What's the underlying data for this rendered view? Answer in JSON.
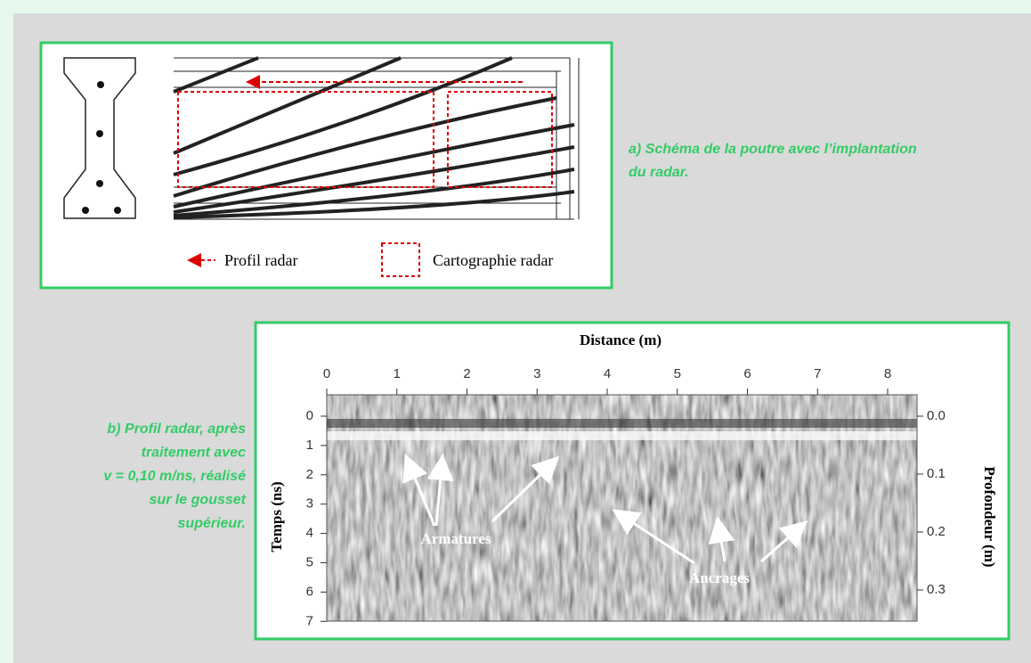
{
  "panel_a": {
    "caption": [
      "a)  Schéma de la poutre avec l’implantation",
      "du radar."
    ],
    "legend": [
      "Profil radar",
      "Cartographie radar"
    ]
  },
  "panel_b": {
    "caption": [
      "b) Profil radar, après",
      "traitement avec",
      "v = 0,10 m/ns, réalisé",
      "sur le gousset",
      "supérieur."
    ],
    "x_axis": {
      "label": "Distance (m)",
      "ticks": [
        "0",
        "1",
        "2",
        "3",
        "4",
        "5",
        "6",
        "7",
        "8"
      ]
    },
    "left_axis": {
      "label": "Temps (ns)",
      "ticks": [
        "0",
        "1",
        "2",
        "3",
        "4",
        "5",
        "6",
        "7"
      ]
    },
    "right_axis": {
      "label": "Profondeur (m)",
      "ticks": [
        "0.0",
        "0.1",
        "0.2",
        "0.3"
      ]
    },
    "annotations": [
      "Armatures",
      "Ancrages"
    ]
  }
}
